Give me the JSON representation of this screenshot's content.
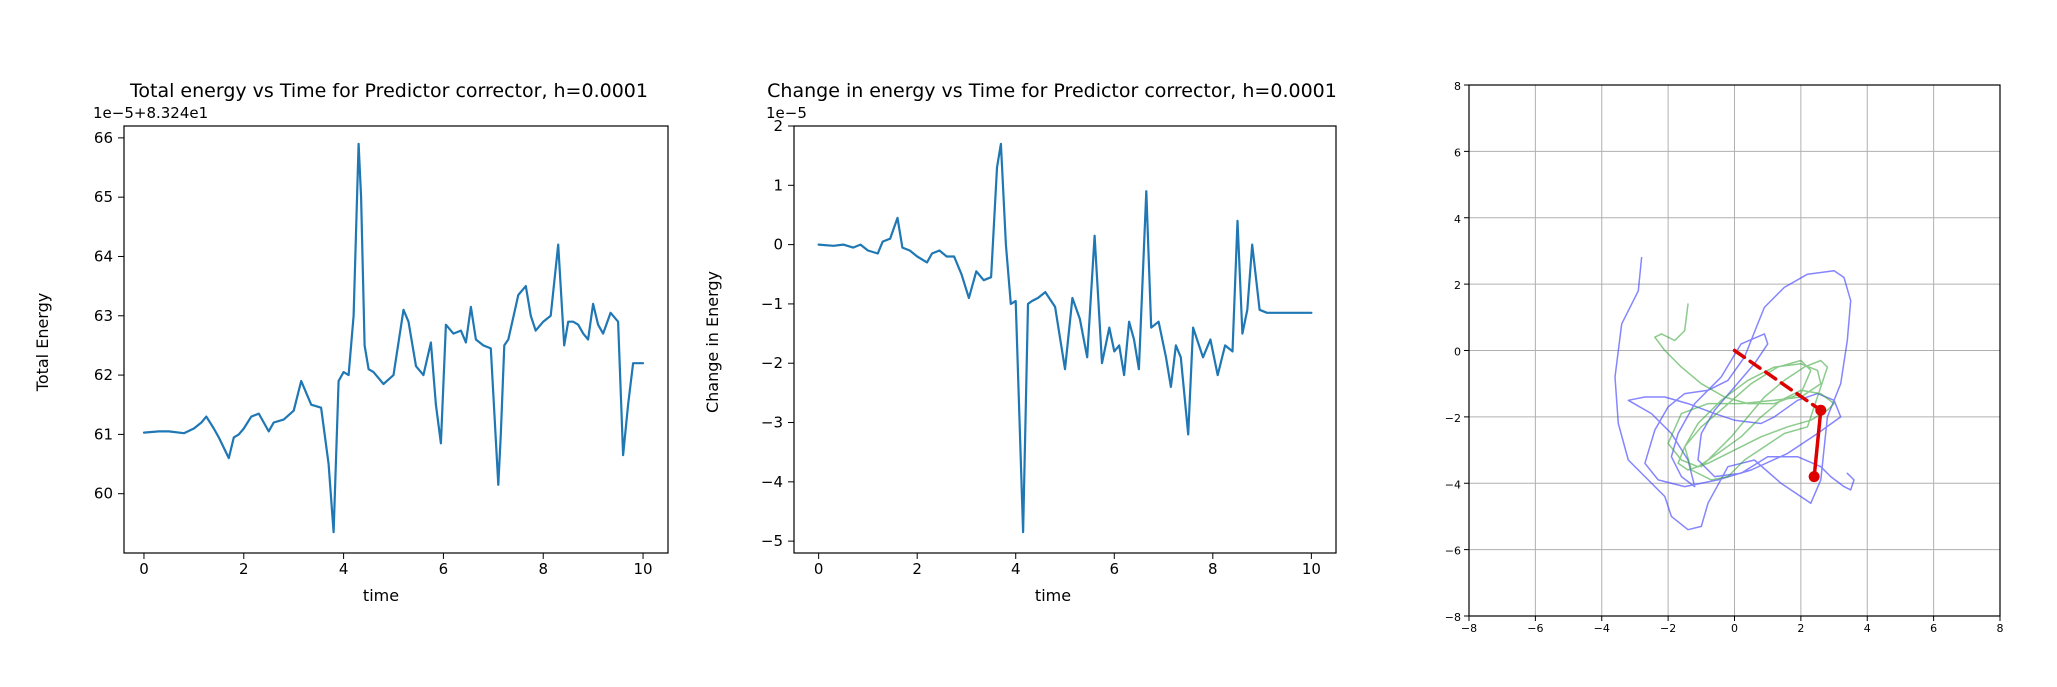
{
  "chart_data": [
    {
      "type": "line",
      "title": "Total energy vs Time for Predictor corrector, h=0.0001",
      "xlabel": "time",
      "ylabel": "Total Energy",
      "offset_label": "1e−5+8.324e1",
      "xlim": [
        -0.4,
        10.5
      ],
      "ylim": [
        59.0,
        66.2
      ],
      "xticks": [
        0,
        2,
        4,
        6,
        8,
        10
      ],
      "xtick_labels": [
        "0",
        "2",
        "4",
        "6",
        "8",
        "10"
      ],
      "yticks": [
        60,
        61,
        62,
        63,
        64,
        65,
        66
      ],
      "ytick_labels": [
        "60",
        "61",
        "62",
        "63",
        "64",
        "65",
        "66"
      ],
      "color": "#1f77b4",
      "grid": false,
      "series": [
        {
          "x": [
            0,
            0.3,
            0.5,
            0.8,
            1.0,
            1.15,
            1.25,
            1.4,
            1.5,
            1.7,
            1.8,
            1.9,
            2.0,
            2.15,
            2.3,
            2.5,
            2.6,
            2.8,
            3.0,
            3.15,
            3.35,
            3.55,
            3.7,
            3.8,
            3.9,
            4.0,
            4.1,
            4.2,
            4.3,
            4.35,
            4.42,
            4.5,
            4.6,
            4.8,
            5.0,
            5.2,
            5.3,
            5.45,
            5.6,
            5.75,
            5.85,
            5.95,
            6.05,
            6.2,
            6.35,
            6.45,
            6.55,
            6.65,
            6.8,
            6.95,
            7.1,
            7.15,
            7.22,
            7.3,
            7.5,
            7.65,
            7.75,
            7.85,
            8.0,
            8.15,
            8.3,
            8.42,
            8.5,
            8.6,
            8.7,
            8.8,
            8.9,
            9.0,
            9.1,
            9.2,
            9.35,
            9.5,
            9.6,
            9.7,
            9.8,
            9.9,
            10.0
          ],
          "y": [
            61.03,
            61.05,
            61.05,
            61.02,
            61.1,
            61.2,
            61.3,
            61.1,
            60.95,
            60.6,
            60.95,
            61.0,
            61.1,
            61.3,
            61.35,
            61.05,
            61.2,
            61.25,
            61.4,
            61.9,
            61.5,
            61.45,
            60.5,
            59.35,
            61.9,
            62.05,
            62.0,
            63.0,
            65.9,
            65.0,
            62.5,
            62.1,
            62.05,
            61.85,
            62.0,
            63.1,
            62.9,
            62.15,
            62.0,
            62.55,
            61.5,
            60.85,
            62.85,
            62.7,
            62.75,
            62.55,
            63.15,
            62.6,
            62.5,
            62.45,
            60.15,
            61.0,
            62.5,
            62.6,
            63.35,
            63.5,
            63.0,
            62.75,
            62.9,
            63.0,
            64.2,
            62.5,
            62.9,
            62.9,
            62.85,
            62.7,
            62.6,
            63.2,
            62.85,
            62.7,
            63.05,
            62.9,
            60.65,
            61.5,
            62.2,
            62.2,
            62.2
          ]
        }
      ]
    },
    {
      "type": "line",
      "title": "Change in energy vs Time for Predictor corrector, h=0.0001",
      "xlabel": "time",
      "ylabel": "Change in Energy",
      "offset_label": "1e−5",
      "xlim": [
        -0.5,
        10.5
      ],
      "ylim": [
        -5.2,
        2.0
      ],
      "xticks": [
        0,
        2,
        4,
        6,
        8,
        10
      ],
      "xtick_labels": [
        "0",
        "2",
        "4",
        "6",
        "8",
        "10"
      ],
      "yticks": [
        -5,
        -4,
        -3,
        -2,
        -1,
        0,
        1,
        2
      ],
      "ytick_labels": [
        "−5",
        "−4",
        "−3",
        "−2",
        "−1",
        "0",
        "1",
        "2"
      ],
      "color": "#1f77b4",
      "grid": false,
      "series": [
        {
          "x": [
            0,
            0.3,
            0.5,
            0.7,
            0.85,
            1.0,
            1.2,
            1.3,
            1.45,
            1.6,
            1.7,
            1.85,
            2.0,
            2.2,
            2.3,
            2.45,
            2.6,
            2.75,
            2.9,
            3.05,
            3.2,
            3.35,
            3.5,
            3.62,
            3.7,
            3.8,
            3.9,
            4.0,
            4.15,
            4.25,
            4.33,
            4.45,
            4.6,
            4.8,
            5.0,
            5.15,
            5.3,
            5.45,
            5.6,
            5.75,
            5.9,
            6.0,
            6.1,
            6.2,
            6.3,
            6.4,
            6.5,
            6.65,
            6.75,
            6.9,
            7.05,
            7.15,
            7.25,
            7.35,
            7.5,
            7.6,
            7.8,
            7.95,
            8.1,
            8.25,
            8.4,
            8.5,
            8.6,
            8.7,
            8.8,
            8.95,
            9.1,
            9.25,
            9.4,
            9.55,
            9.7,
            9.82,
            9.9,
            9.95,
            10.0
          ],
          "y": [
            0.0,
            -0.02,
            0.0,
            -0.05,
            0.0,
            -0.1,
            -0.15,
            0.05,
            0.1,
            0.45,
            -0.05,
            -0.1,
            -0.2,
            -0.3,
            -0.15,
            -0.1,
            -0.2,
            -0.2,
            -0.5,
            -0.9,
            -0.45,
            -0.6,
            -0.55,
            1.3,
            1.7,
            0.0,
            -1.0,
            -0.95,
            -4.85,
            -1.0,
            -0.95,
            -0.9,
            -0.8,
            -1.05,
            -2.1,
            -0.9,
            -1.25,
            -1.9,
            0.15,
            -2.0,
            -1.4,
            -1.8,
            -1.7,
            -2.2,
            -1.3,
            -1.6,
            -2.1,
            0.9,
            -1.4,
            -1.3,
            -1.9,
            -2.4,
            -1.7,
            -1.9,
            -3.2,
            -1.4,
            -1.9,
            -1.6,
            -2.2,
            -1.7,
            -1.8,
            0.4,
            -1.5,
            -1.1,
            0.0,
            -1.1,
            -1.15,
            -1.15,
            -1.15,
            -1.15,
            -1.15,
            -1.15,
            -1.15,
            -1.15,
            -1.15
          ]
        }
      ]
    },
    {
      "type": "line",
      "title": "",
      "xlabel": "",
      "ylabel": "",
      "xlim": [
        -8,
        8
      ],
      "ylim": [
        -8,
        8
      ],
      "xticks": [
        -8,
        -6,
        -4,
        -2,
        0,
        2,
        4,
        6,
        8
      ],
      "xtick_labels": [
        "−8",
        "−6",
        "−4",
        "−2",
        "0",
        "2",
        "4",
        "6",
        "8"
      ],
      "yticks": [
        -8,
        -6,
        -4,
        -2,
        0,
        2,
        4,
        6,
        8
      ],
      "ytick_labels": [
        "−8",
        "−6",
        "−4",
        "−2",
        "0",
        "2",
        "4",
        "6",
        "8"
      ],
      "grid": true,
      "series": [
        {
          "color": "#4444ff",
          "style": "solid",
          "opacity": 0.65,
          "x": [
            -2.8,
            -2.9,
            -3.4,
            -3.6,
            -3.5,
            -3.2,
            -2.6,
            -2.1,
            -1.9,
            -1.4,
            -1.0,
            -0.8,
            -0.2,
            0.6,
            1.4,
            2.3,
            2.6,
            2.8,
            3.2,
            3.4,
            3.5,
            3.3,
            3.0,
            2.2,
            1.5,
            0.9,
            0.7,
            0.3,
            -0.2,
            -0.8,
            -1.5,
            -2.0,
            -2.4,
            -2.7,
            -2.3,
            -1.5,
            -0.5,
            0.5,
            1.6,
            2.5,
            3.2,
            3.0,
            2.5,
            1.9,
            1.2,
            0.8,
            0.0,
            -0.6,
            -1.4,
            -2.1,
            -2.7,
            -3.2,
            -2.5,
            -1.9,
            -1.4,
            -1.2,
            -1.6,
            -1.9,
            -1.7,
            -1.2,
            -0.4,
            0.2,
            0.9,
            1.0,
            0.6,
            0.0,
            -0.6,
            -1.0,
            -1.1,
            -0.6,
            0.2,
            1.0,
            1.9,
            2.6,
            2.9,
            3.3,
            3.5,
            3.6,
            3.4
          ],
          "y": [
            2.8,
            1.8,
            0.8,
            -0.8,
            -2.2,
            -3.3,
            -3.9,
            -4.4,
            -5.0,
            -5.4,
            -5.3,
            -4.6,
            -3.5,
            -3.3,
            -4.0,
            -4.6,
            -3.9,
            -2.0,
            -1.0,
            0.3,
            1.5,
            2.2,
            2.4,
            2.3,
            1.9,
            1.3,
            0.8,
            -0.2,
            -0.9,
            -1.2,
            -1.3,
            -1.7,
            -2.4,
            -3.4,
            -3.9,
            -4.1,
            -3.9,
            -3.6,
            -3.1,
            -2.5,
            -2.0,
            -1.5,
            -1.3,
            -1.5,
            -2.0,
            -2.2,
            -2.1,
            -1.9,
            -1.6,
            -1.4,
            -1.4,
            -1.5,
            -1.9,
            -2.5,
            -3.3,
            -4.1,
            -3.8,
            -3.2,
            -2.5,
            -1.6,
            -0.8,
            0.2,
            0.5,
            0.2,
            -0.4,
            -1.1,
            -1.8,
            -2.5,
            -3.3,
            -3.8,
            -3.7,
            -3.2,
            -3.2,
            -3.5,
            -3.8,
            -4.1,
            -4.2,
            -3.9,
            -3.7
          ]
        },
        {
          "color": "#2ca02c",
          "style": "solid",
          "opacity": 0.55,
          "x": [
            -1.4,
            -1.5,
            -1.8,
            -2.2,
            -2.4,
            -2.1,
            -1.6,
            -1.0,
            -0.3,
            0.4,
            1.2,
            2.0,
            2.3,
            2.0,
            1.3,
            0.5,
            -0.3,
            -1.0,
            -1.5,
            -1.7,
            -1.4,
            -0.8,
            0.0,
            0.8,
            1.6,
            2.3,
            2.8,
            3.0,
            2.6,
            2.0,
            1.4,
            0.8,
            0.2,
            -0.5,
            -1.1,
            -1.6,
            -2.0,
            -1.6,
            -0.8,
            0.2,
            1.2,
            2.0,
            2.6,
            2.5,
            2.0,
            1.2,
            0.4,
            -0.4,
            -1.1,
            -1.5,
            -1.3,
            -0.7,
            -0.2,
            0.3,
            0.9,
            1.5,
            2.2,
            2.8,
            2.6,
            2.1,
            1.5,
            0.9,
            0.4,
            -0.1,
            -0.6,
            -1.0
          ],
          "y": [
            1.4,
            0.6,
            0.3,
            0.5,
            0.4,
            0.0,
            -0.5,
            -1.0,
            -1.4,
            -1.6,
            -1.6,
            -1.3,
            -0.6,
            -0.3,
            -0.5,
            -1.0,
            -1.7,
            -2.3,
            -2.9,
            -3.4,
            -3.6,
            -3.4,
            -3.0,
            -2.6,
            -2.3,
            -2.1,
            -1.8,
            -1.6,
            -1.3,
            -1.2,
            -1.5,
            -2.0,
            -2.6,
            -3.1,
            -3.5,
            -3.3,
            -2.8,
            -1.9,
            -1.6,
            -1.6,
            -1.5,
            -1.4,
            -1.0,
            -0.6,
            -0.4,
            -0.5,
            -0.9,
            -1.5,
            -2.2,
            -2.9,
            -3.6,
            -3.9,
            -3.8,
            -3.3,
            -2.9,
            -2.5,
            -2.3,
            -0.5,
            -0.3,
            -0.5,
            -0.9,
            -1.4,
            -2.0,
            -2.6,
            -3.1,
            -3.5
          ]
        },
        {
          "color": "#dd0000",
          "style": "dashed",
          "x": [
            0,
            2.6
          ],
          "y": [
            0,
            -1.8
          ]
        },
        {
          "color": "#dd0000",
          "style": "solid",
          "x": [
            2.6,
            2.4
          ],
          "y": [
            -1.8,
            -3.8
          ]
        }
      ],
      "points": [
        {
          "x": 2.6,
          "y": -1.8,
          "color": "#dd0000"
        },
        {
          "x": 2.4,
          "y": -3.8,
          "color": "#dd0000"
        }
      ]
    }
  ]
}
